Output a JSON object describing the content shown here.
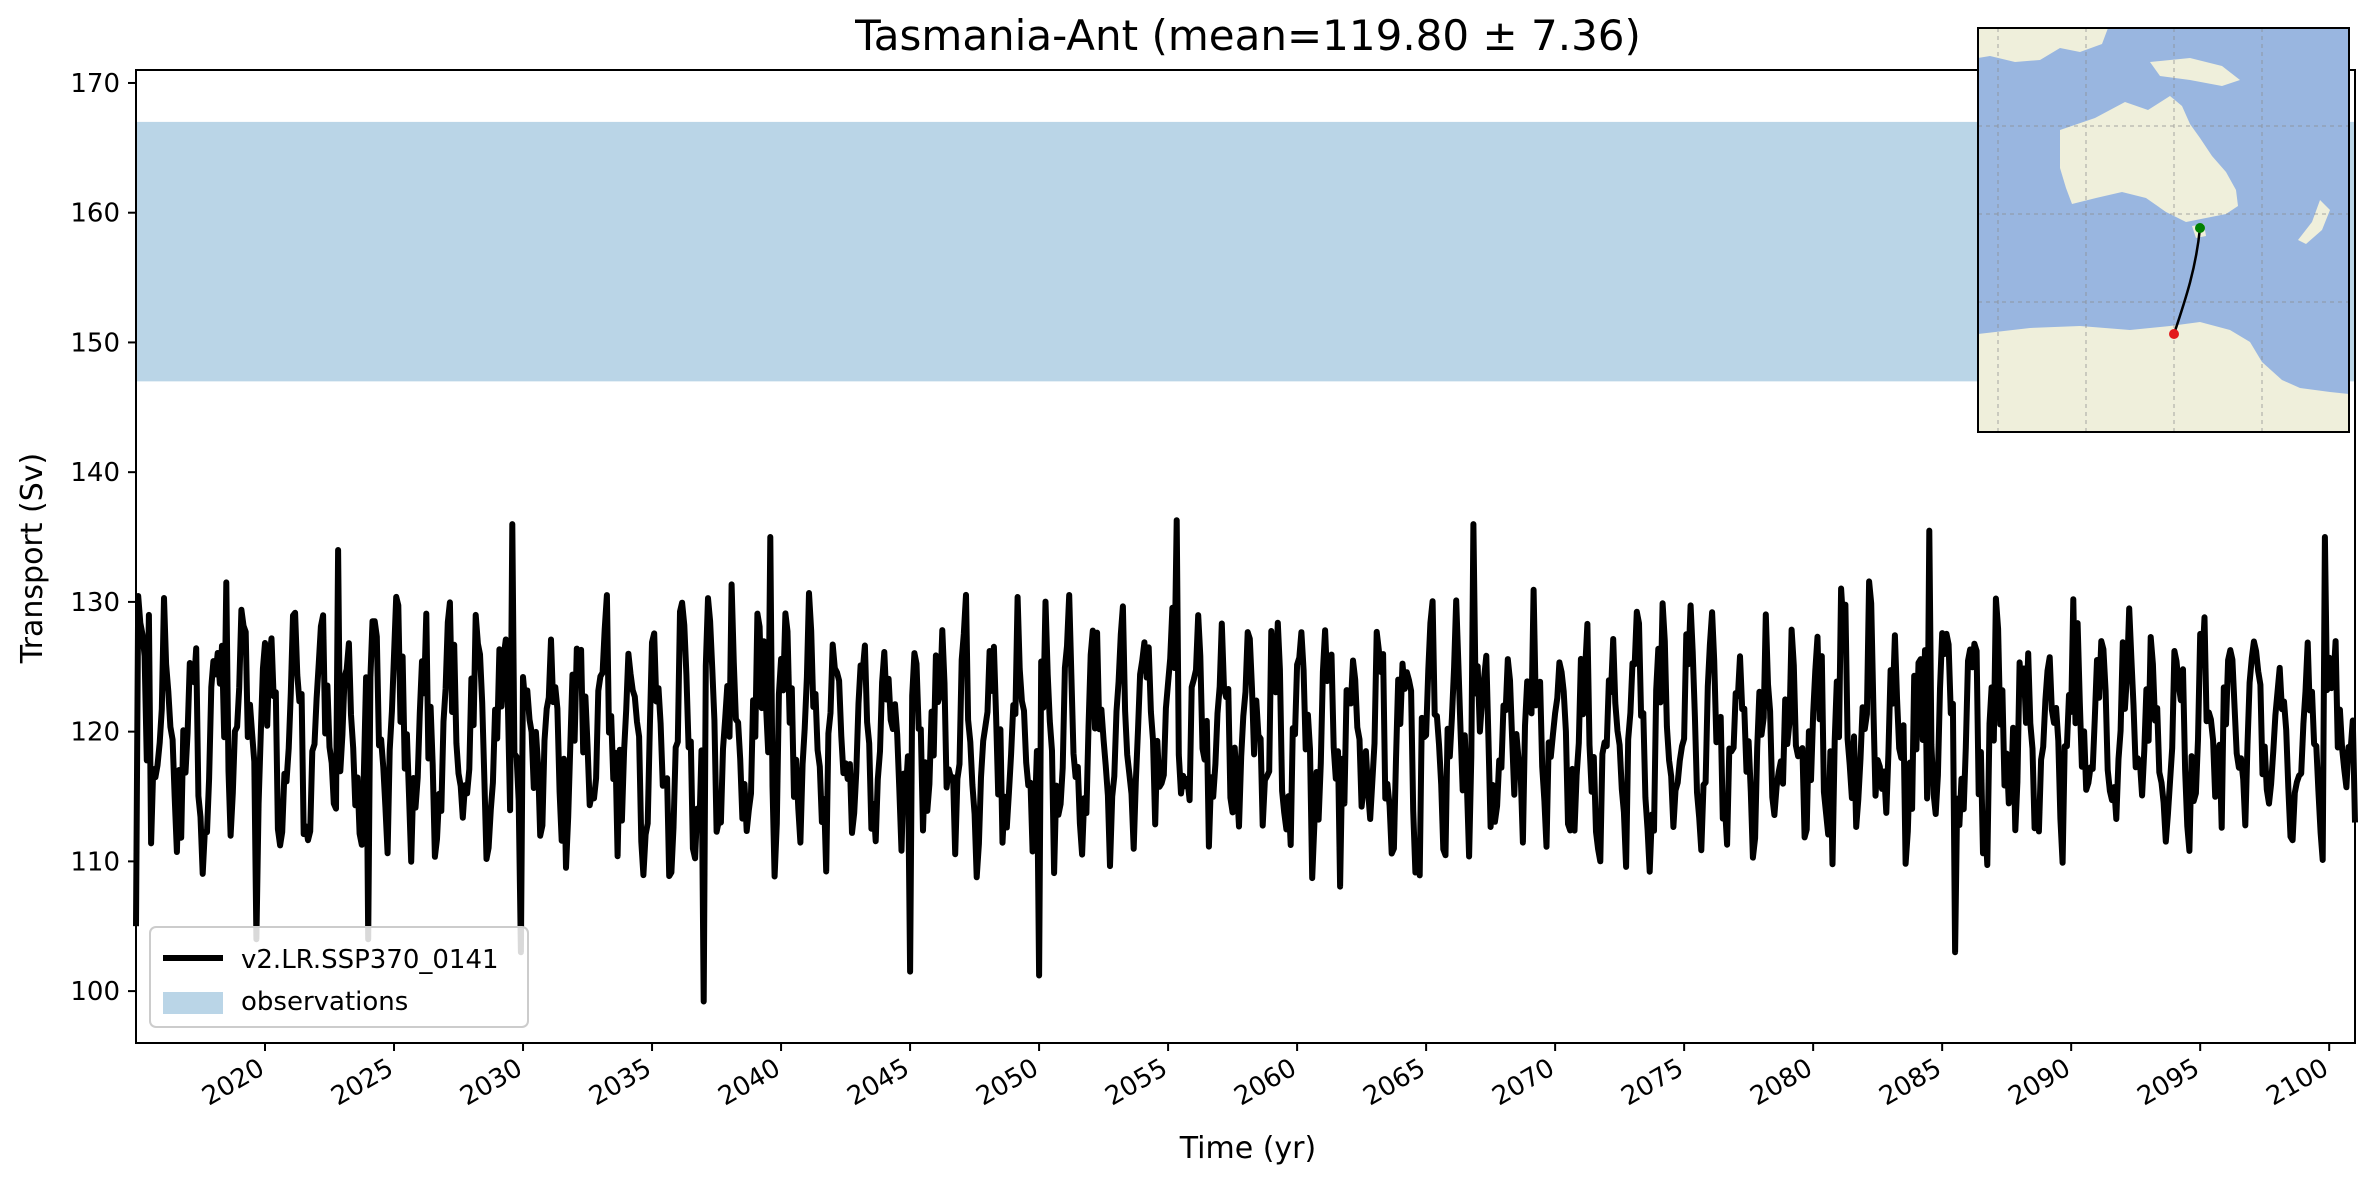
{
  "chart_data": {
    "type": "line",
    "title": "Tasmania-Ant (mean=119.80 ± 7.36)",
    "xlabel": "Time (yr)",
    "ylabel": "Transport (Sv)",
    "xlim": [
      2015,
      2101
    ],
    "ylim": [
      96,
      171
    ],
    "x_ticks": [
      "2020",
      "2025",
      "2030",
      "2035",
      "2040",
      "2045",
      "2050",
      "2055",
      "2060",
      "2065",
      "2070",
      "2075",
      "2080",
      "2085",
      "2090",
      "2095",
      "2100"
    ],
    "y_ticks": [
      "100",
      "110",
      "120",
      "130",
      "140",
      "150",
      "160",
      "170"
    ],
    "grid": false,
    "legend_position": "lower-left",
    "series": [
      {
        "name": "v2.LR.SSP370_0141",
        "color": "#000000",
        "x_start": 2015,
        "x_end": 2101,
        "mean": 119.8,
        "std": 7.36,
        "min": 99.2,
        "max": 136.3,
        "description_samples": [
          {
            "x": 2015.0,
            "y": 105
          },
          {
            "x": 2015.5,
            "y": 129
          },
          {
            "x": 2018.5,
            "y": 131.5
          },
          {
            "x": 2019.7,
            "y": 104
          },
          {
            "x": 2022.8,
            "y": 134
          },
          {
            "x": 2024.0,
            "y": 104
          },
          {
            "x": 2029.6,
            "y": 136
          },
          {
            "x": 2029.9,
            "y": 103
          },
          {
            "x": 2037.0,
            "y": 99.2
          },
          {
            "x": 2039.6,
            "y": 135
          },
          {
            "x": 2045.0,
            "y": 101.5
          },
          {
            "x": 2050.0,
            "y": 101.2
          },
          {
            "x": 2055.3,
            "y": 136.3
          },
          {
            "x": 2066.8,
            "y": 136
          },
          {
            "x": 2084.5,
            "y": 135.5
          },
          {
            "x": 2085.5,
            "y": 103
          },
          {
            "x": 2099.8,
            "y": 135
          },
          {
            "x": 2101.0,
            "y": 113
          }
        ]
      }
    ],
    "bands": [
      {
        "name": "observations",
        "y0": 147,
        "y1": 167,
        "color": "#bad5e7"
      }
    ],
    "legend": [
      {
        "label": "v2.LR.SSP370_0141",
        "kind": "line",
        "color": "#000000"
      },
      {
        "label": "observations",
        "kind": "patch",
        "color": "#bad5e7"
      }
    ],
    "inset_map": {
      "description": "Map of Australia, New Zealand and Antarctica with transect from Tasmania to Antarctica",
      "ocean_color": "#99b6e0",
      "land_color": "#efefdb",
      "start_marker_color": "#008000",
      "end_marker_color": "#e31a1c"
    }
  }
}
